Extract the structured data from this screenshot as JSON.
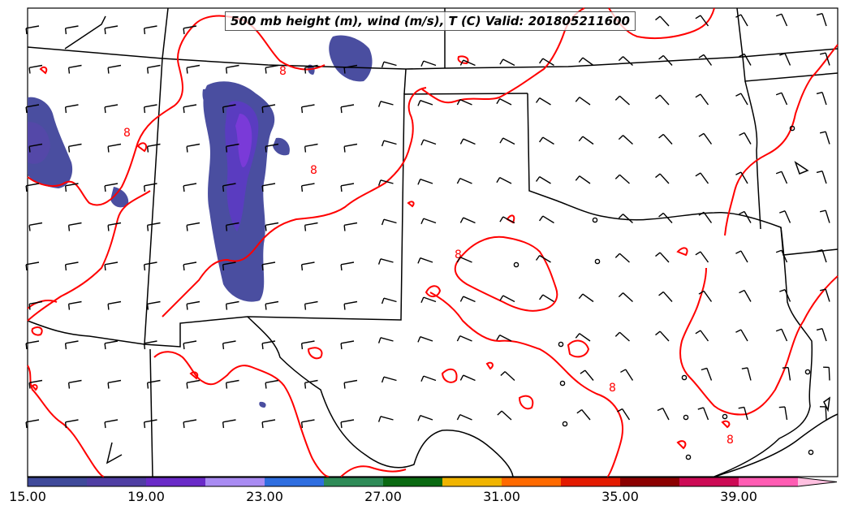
{
  "title": "500 mb height (m), wind (m/s), T (C) Valid: 201805211600",
  "colorbar": {
    "tick_labels": [
      "15.00",
      "19.00",
      "23.00",
      "27.00",
      "31.00",
      "35.00",
      "39.00"
    ],
    "colors": [
      "#3f4a9a",
      "#4f3ea3",
      "#6a2bc8",
      "#a98bf2",
      "#2f6ee0",
      "#2e8b57",
      "#0b6a12",
      "#f0b400",
      "#ff6a00",
      "#e31a00",
      "#8b0000",
      "#cc0a55",
      "#ff5cb3",
      "#ffc0e0"
    ]
  },
  "contour_labels": [
    "8",
    "8",
    "8",
    "8",
    "8",
    "8"
  ],
  "colors": {
    "temperature_contour": "#ff0000",
    "borders": "#000000"
  },
  "icons": [
    "wind-barb-icon",
    "calm-wind-circle-icon"
  ]
}
